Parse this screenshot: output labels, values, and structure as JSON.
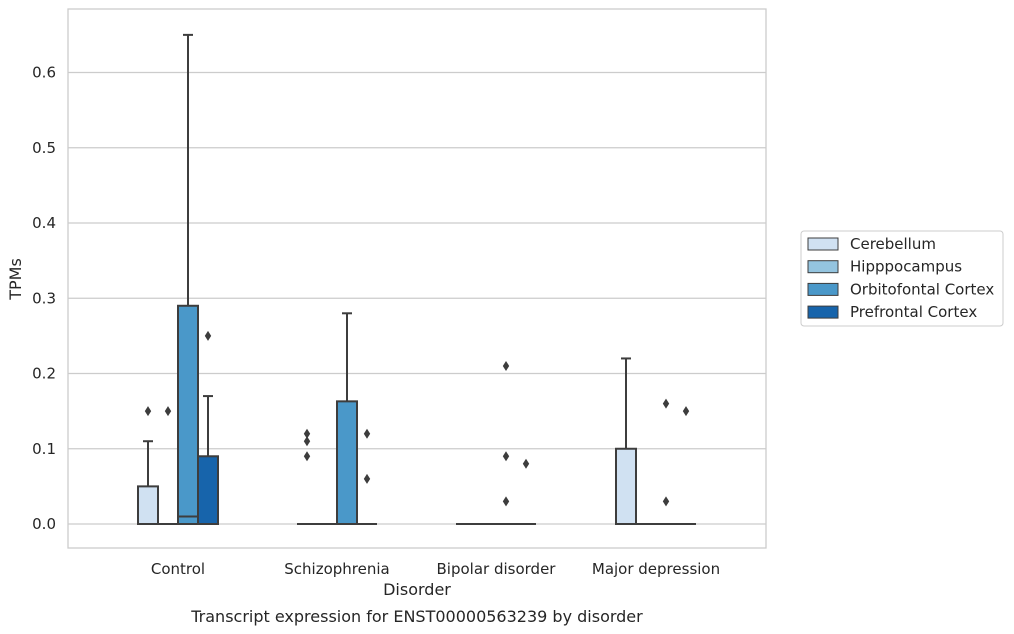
{
  "chart_data": {
    "type": "box",
    "caption": "Transcript expression for ENST00000563239 by disorder",
    "xlabel": "Disorder",
    "ylabel": "TPMs",
    "ylim": [
      -0.033,
      0.68
    ],
    "yticks": [
      0.0,
      0.1,
      0.2,
      0.3,
      0.4,
      0.5,
      0.6
    ],
    "ytick_labels": [
      "0.0",
      "0.1",
      "0.2",
      "0.3",
      "0.4",
      "0.5",
      "0.6"
    ],
    "grid": "horizontal",
    "legend_position": "right",
    "categories": [
      "Control",
      "Schizophrenia",
      "Bipolar disorder",
      "Major depression"
    ],
    "series": [
      {
        "name": "Cerebellum",
        "color": "#d0e1f2",
        "boxes": [
          {
            "category": "Control",
            "whisker_low": 0.0,
            "q1": 0.0,
            "median": 0.0,
            "q3": 0.05,
            "whisker_high": 0.11,
            "outliers": [
              0.15
            ]
          },
          {
            "category": "Schizophrenia",
            "whisker_low": 0.0,
            "q1": 0.0,
            "median": 0.0,
            "q3": 0.0,
            "whisker_high": 0.0,
            "outliers": [
              0.09,
              0.11,
              0.12
            ]
          },
          {
            "category": "Bipolar disorder",
            "whisker_low": 0.0,
            "q1": 0.0,
            "median": 0.0,
            "q3": 0.0,
            "whisker_high": 0.0,
            "outliers": []
          },
          {
            "category": "Major depression",
            "whisker_low": 0.0,
            "q1": 0.0,
            "median": 0.0,
            "q3": 0.1,
            "whisker_high": 0.22,
            "outliers": []
          }
        ]
      },
      {
        "name": "Hipppocampus",
        "color": "#94c4df",
        "boxes": [
          {
            "category": "Control",
            "whisker_low": 0.0,
            "q1": 0.0,
            "median": 0.0,
            "q3": 0.0,
            "whisker_high": 0.0,
            "outliers": [
              0.15
            ]
          },
          {
            "category": "Schizophrenia",
            "whisker_low": 0.0,
            "q1": 0.0,
            "median": 0.0,
            "q3": 0.0,
            "whisker_high": 0.0,
            "outliers": []
          },
          {
            "category": "Bipolar disorder",
            "whisker_low": 0.0,
            "q1": 0.0,
            "median": 0.0,
            "q3": 0.0,
            "whisker_high": 0.0,
            "outliers": []
          },
          {
            "category": "Major depression",
            "whisker_low": 0.0,
            "q1": 0.0,
            "median": 0.0,
            "q3": 0.0,
            "whisker_high": 0.0,
            "outliers": []
          }
        ]
      },
      {
        "name": "Orbitofontal Cortex",
        "color": "#4a98c9",
        "boxes": [
          {
            "category": "Control",
            "whisker_low": 0.0,
            "q1": 0.0,
            "median": 0.01,
            "q3": 0.29,
            "whisker_high": 0.65,
            "outliers": []
          },
          {
            "category": "Schizophrenia",
            "whisker_low": 0.0,
            "q1": 0.0,
            "median": 0.0,
            "q3": 0.163,
            "whisker_high": 0.28,
            "outliers": []
          },
          {
            "category": "Bipolar disorder",
            "whisker_low": 0.0,
            "q1": 0.0,
            "median": 0.0,
            "q3": 0.0,
            "whisker_high": 0.0,
            "outliers": [
              0.03,
              0.09,
              0.21
            ]
          },
          {
            "category": "Major depression",
            "whisker_low": 0.0,
            "q1": 0.0,
            "median": 0.0,
            "q3": 0.0,
            "whisker_high": 0.0,
            "outliers": [
              0.03,
              0.16
            ]
          }
        ]
      },
      {
        "name": "Prefrontal Cortex",
        "color": "#1764ab",
        "boxes": [
          {
            "category": "Control",
            "whisker_low": 0.0,
            "q1": 0.0,
            "median": 0.0,
            "q3": 0.09,
            "whisker_high": 0.17,
            "outliers": [
              0.25
            ]
          },
          {
            "category": "Schizophrenia",
            "whisker_low": 0.0,
            "q1": 0.0,
            "median": 0.0,
            "q3": 0.0,
            "whisker_high": 0.0,
            "outliers": [
              0.06,
              0.12
            ]
          },
          {
            "category": "Bipolar disorder",
            "whisker_low": 0.0,
            "q1": 0.0,
            "median": 0.0,
            "q3": 0.0,
            "whisker_high": 0.0,
            "outliers": [
              0.08
            ]
          },
          {
            "category": "Major depression",
            "whisker_low": 0.0,
            "q1": 0.0,
            "median": 0.0,
            "q3": 0.0,
            "whisker_high": 0.0,
            "outliers": [
              0.15
            ]
          }
        ]
      }
    ]
  }
}
